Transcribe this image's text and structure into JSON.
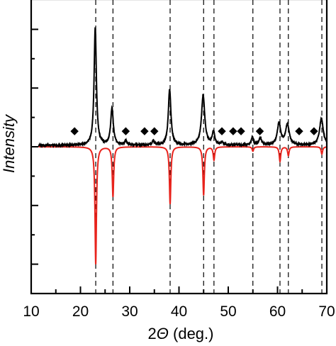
{
  "chart_data": {
    "type": "line",
    "title": "",
    "xlabel": {
      "prefix": "2",
      "symbol": "Θ",
      "suffix": " (deg.)"
    },
    "ylabel": "Intensity",
    "xlim": [
      10,
      70
    ],
    "ylim": [
      -1,
      1
    ],
    "x_ticks": [
      10,
      20,
      30,
      40,
      50,
      60,
      70
    ],
    "y_ticks_major": [
      -0.8,
      -0.4,
      0,
      0.4,
      0.8
    ],
    "grid": false,
    "colors": {
      "measured": "#000000",
      "reference": "#e8231c",
      "guide": "#000000"
    },
    "measured_peaks": [
      {
        "x": 23.0,
        "y": 0.8,
        "w": 0.28
      },
      {
        "x": 26.4,
        "y": 0.25,
        "w": 0.32
      },
      {
        "x": 29.2,
        "y": 0.03,
        "w": 0.25
      },
      {
        "x": 34.8,
        "y": 0.03,
        "w": 0.25
      },
      {
        "x": 38.1,
        "y": 0.38,
        "w": 0.32
      },
      {
        "x": 44.9,
        "y": 0.34,
        "w": 0.4
      },
      {
        "x": 47.0,
        "y": 0.09,
        "w": 0.3
      },
      {
        "x": 48.7,
        "y": 0.02,
        "w": 0.25
      },
      {
        "x": 54.9,
        "y": 0.05,
        "w": 0.3
      },
      {
        "x": 56.5,
        "y": 0.05,
        "w": 0.3
      },
      {
        "x": 60.3,
        "y": 0.15,
        "w": 0.4
      },
      {
        "x": 62.0,
        "y": 0.14,
        "w": 0.45
      },
      {
        "x": 68.9,
        "y": 0.18,
        "w": 0.45
      }
    ],
    "measured_baseline": 0.01,
    "reference_peaks": [
      {
        "x": 23.1,
        "y": -0.8
      },
      {
        "x": 26.6,
        "y": -0.34
      },
      {
        "x": 38.2,
        "y": -0.39
      },
      {
        "x": 45.0,
        "y": -0.33
      },
      {
        "x": 47.1,
        "y": -0.09
      },
      {
        "x": 55.0,
        "y": -0.03
      },
      {
        "x": 60.5,
        "y": -0.1
      },
      {
        "x": 62.2,
        "y": -0.06
      },
      {
        "x": 69.0,
        "y": -0.05
      }
    ],
    "reference_width": 0.18,
    "impurity_markers": {
      "symbol": "◆",
      "y": 0.11,
      "x": [
        18.8,
        29.2,
        33.0,
        35.0,
        48.7,
        51.0,
        52.6,
        56.4,
        64.4,
        67.4
      ]
    },
    "guide_lines_x": [
      23.1,
      26.6,
      38.2,
      45.0,
      47.1,
      55.0,
      60.5,
      62.2,
      69.0
    ]
  }
}
